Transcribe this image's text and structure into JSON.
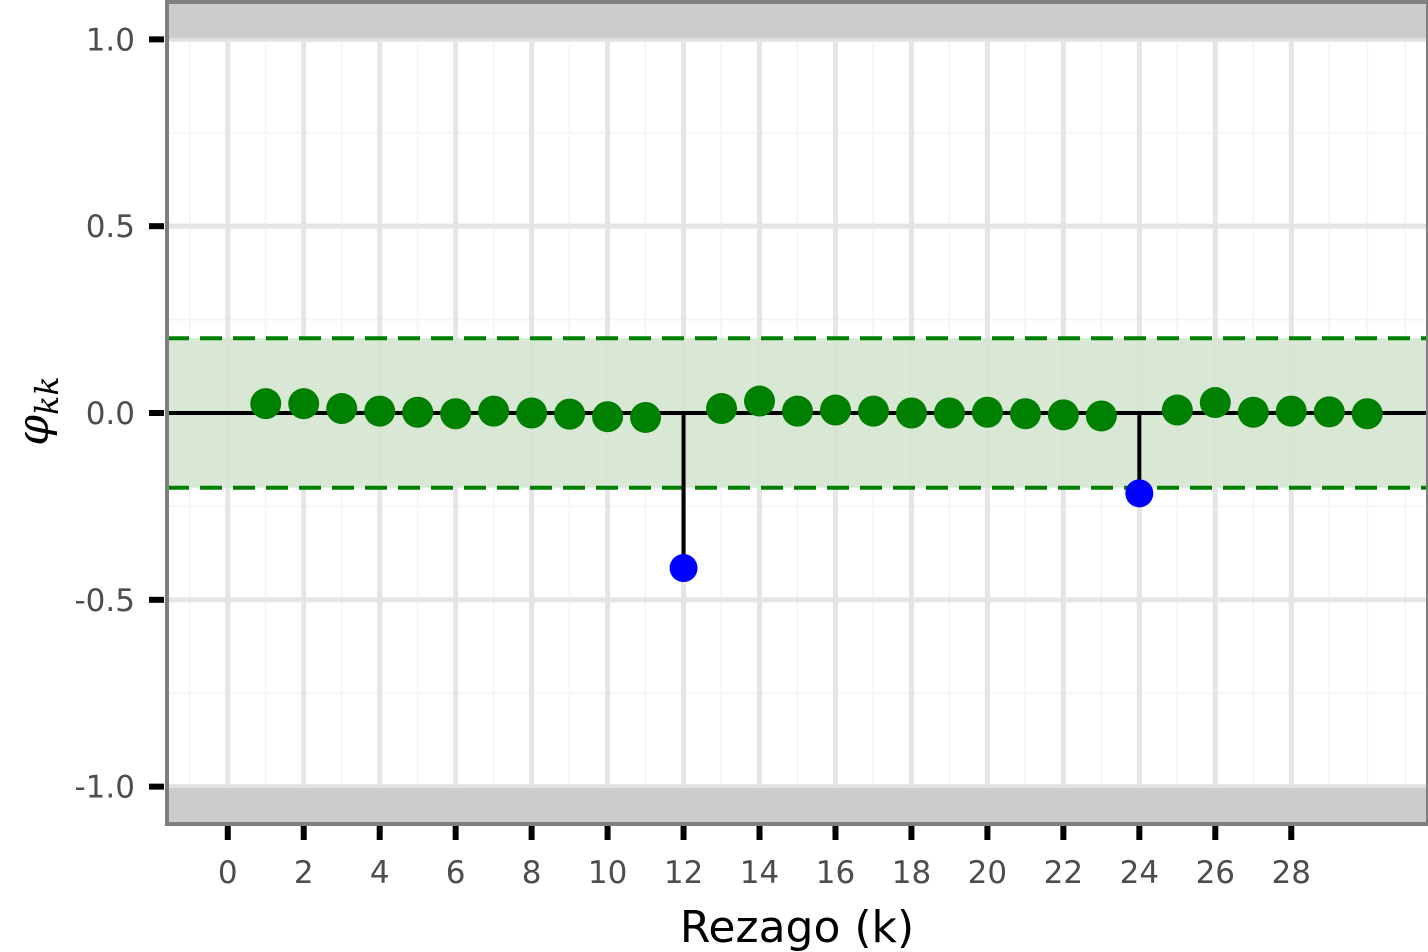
{
  "chart_data": {
    "type": "scatter",
    "subtype": "pacf-lollipop",
    "title": "",
    "xlabel": "Rezago (k)",
    "ylabel": {
      "main": "φ",
      "sub": "kk"
    },
    "xlim": [
      -1.6,
      31.6
    ],
    "ylim": [
      -1.1,
      1.1
    ],
    "x_ticks": [
      0,
      2,
      4,
      6,
      8,
      10,
      12,
      14,
      16,
      18,
      20,
      22,
      24,
      26,
      28
    ],
    "y_ticks": [
      -1.0,
      -0.5,
      0.0,
      0.5,
      1.0
    ],
    "y_tick_labels": [
      "-1.0",
      "-0.5",
      "0.0",
      "0.5",
      "1.0"
    ],
    "confidence_band": [
      -0.2,
      0.2
    ],
    "shaded_limits": [
      -1.0,
      1.0
    ],
    "grid": true,
    "lags": [
      1,
      2,
      3,
      4,
      5,
      6,
      7,
      8,
      9,
      10,
      11,
      12,
      13,
      14,
      15,
      16,
      17,
      18,
      19,
      20,
      21,
      22,
      23,
      24,
      25,
      26,
      27,
      28,
      29,
      30
    ],
    "values": [
      0.025,
      0.025,
      0.012,
      0.005,
      0.002,
      -0.002,
      0.005,
      0.0,
      -0.003,
      -0.01,
      -0.012,
      -0.415,
      0.012,
      0.032,
      0.005,
      0.008,
      0.005,
      0.0,
      0.0,
      0.002,
      -0.002,
      -0.005,
      -0.008,
      -0.215,
      0.008,
      0.028,
      0.002,
      0.005,
      0.003,
      -0.002
    ],
    "colors": {
      "inside": "#008000",
      "outside": "#0000ff",
      "band_fill": "#d5e5d0",
      "band_line": "#008000",
      "stem": "#000000",
      "zero_line": "#000000",
      "panel_border": "#7f7f7f",
      "limit_shade": "#cccccc",
      "grid_major": "#e5e5e5",
      "grid_minor": "#f5f5f5"
    }
  }
}
